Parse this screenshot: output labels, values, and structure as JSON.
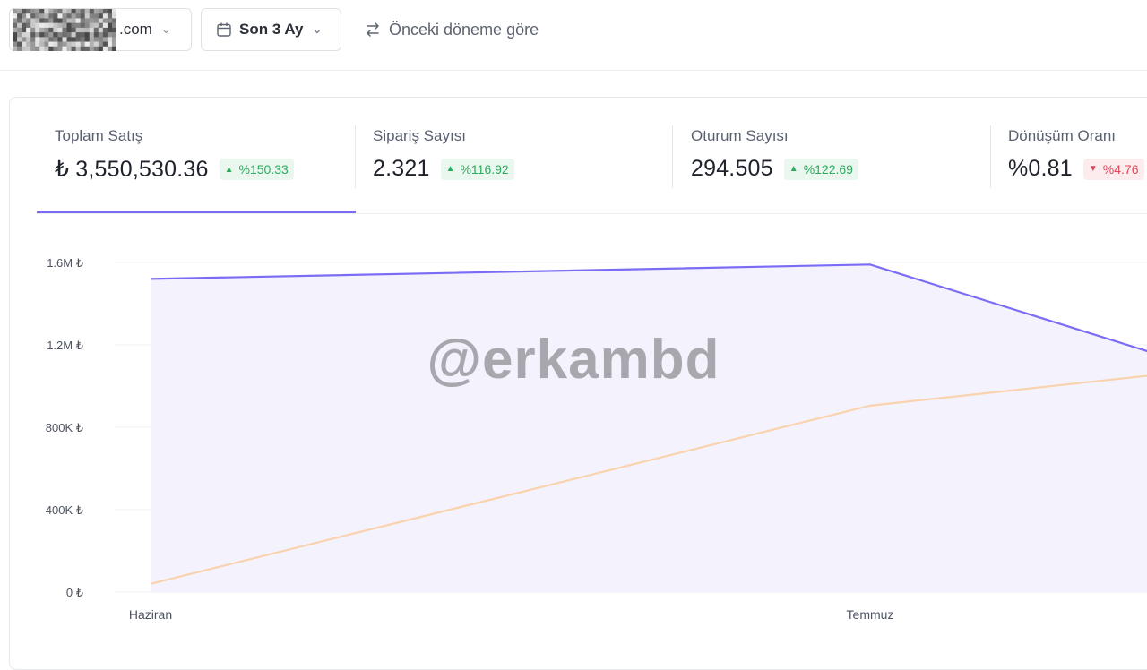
{
  "toolbar": {
    "store_suffix": ".com",
    "period_label": "Son 3 Ay",
    "compare_label": "Önceki döneme göre"
  },
  "metrics": [
    {
      "label": "Toplam Satış",
      "value": "₺ 3,550,530.36",
      "change": "%150.33",
      "trend": "up"
    },
    {
      "label": "Sipariş Sayısı",
      "value": "2.321",
      "change": "%116.92",
      "trend": "up"
    },
    {
      "label": "Oturum Sayısı",
      "value": "294.505",
      "change": "%122.69",
      "trend": "up"
    },
    {
      "label": "Dönüşüm Oranı",
      "value": "%0.81",
      "change": "%4.76",
      "trend": "down"
    }
  ],
  "watermark": "@erkambd",
  "colors": {
    "accent": "#7a6cf0",
    "current_line": "#7b6cf5",
    "previous_line": "#f9d2ae",
    "area_fill": "#f4f3fd",
    "up": "#2eaa5f",
    "down": "#e0465a"
  },
  "chart_data": {
    "type": "line",
    "categories": [
      "Haziran",
      "Temmuz",
      ""
    ],
    "yticks": [
      "0 ₺",
      "400K ₺",
      "800K ₺",
      "1.2M ₺",
      "1.6M ₺"
    ],
    "ylim": [
      0,
      1600000
    ],
    "series": [
      {
        "name": "",
        "values": [
          1520000,
          1590000,
          1140000
        ]
      },
      {
        "name": "",
        "values": [
          40000,
          905000,
          1060000
        ]
      }
    ],
    "grid": true
  }
}
